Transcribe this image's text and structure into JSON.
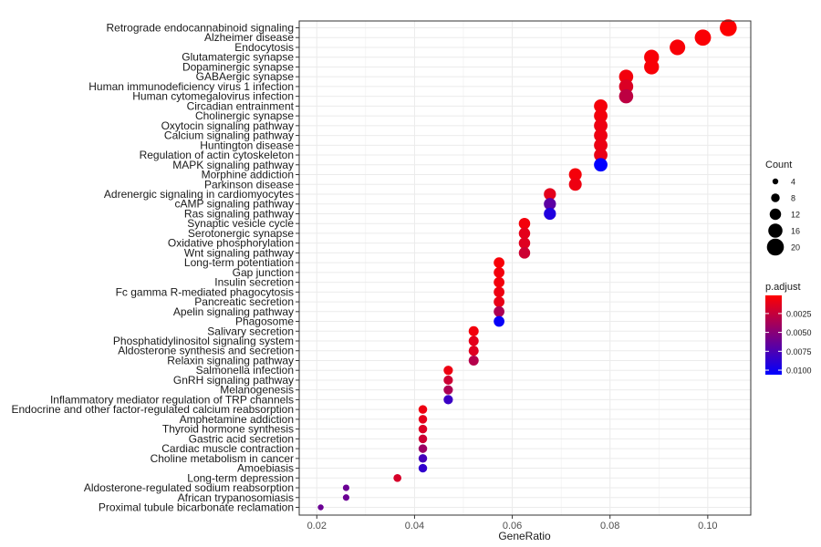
{
  "chart_data": {
    "type": "scatter",
    "xlabel": "GeneRatio",
    "xlim": [
      0.0164,
      0.1088
    ],
    "xticks": [
      0.02,
      0.04,
      0.06,
      0.08,
      0.1
    ],
    "xtick_labels": [
      "0.02",
      "0.04",
      "0.06",
      "0.08",
      "0.10"
    ],
    "size_legend": {
      "title": "Count",
      "values": [
        4,
        8,
        12,
        16,
        20
      ]
    },
    "color_legend": {
      "title": "p.adjust",
      "ticks": [
        0.0025,
        0.005,
        0.0075,
        0.01
      ],
      "tick_labels": [
        "0.0025",
        "0.0050",
        "0.0075",
        "0.0100"
      ],
      "range": [
        0.0001,
        0.0106
      ],
      "low_color": "#ff0000",
      "high_color": "#0000ff"
    },
    "points": [
      {
        "term": "Retrograde endocannabinoid signaling",
        "x": 0.1042,
        "count": 20,
        "p": 0.0002
      },
      {
        "term": "Alzheimer disease",
        "x": 0.099,
        "count": 19,
        "p": 0.0003
      },
      {
        "term": "Endocytosis",
        "x": 0.0938,
        "count": 18,
        "p": 0.0004
      },
      {
        "term": "Glutamatergic synapse",
        "x": 0.0885,
        "count": 17,
        "p": 0.0004
      },
      {
        "term": "Dopaminergic synapse",
        "x": 0.0885,
        "count": 17,
        "p": 0.0004
      },
      {
        "term": "GABAergic synapse",
        "x": 0.0833,
        "count": 16,
        "p": 0.0006
      },
      {
        "term": "Human immunodeficiency virus 1 infection",
        "x": 0.0833,
        "count": 16,
        "p": 0.0016
      },
      {
        "term": "Human cytomegalovirus infection",
        "x": 0.0833,
        "count": 16,
        "p": 0.0028
      },
      {
        "term": "Circadian entrainment",
        "x": 0.0781,
        "count": 15,
        "p": 0.0005
      },
      {
        "term": "Cholinergic synapse",
        "x": 0.0781,
        "count": 15,
        "p": 0.0006
      },
      {
        "term": "Oxytocin signaling pathway",
        "x": 0.0781,
        "count": 15,
        "p": 0.0008
      },
      {
        "term": "Calcium signaling pathway",
        "x": 0.0781,
        "count": 15,
        "p": 0.0008
      },
      {
        "term": "Huntington disease",
        "x": 0.0781,
        "count": 15,
        "p": 0.0009
      },
      {
        "term": "Regulation of actin cytoskeleton",
        "x": 0.0781,
        "count": 15,
        "p": 0.001
      },
      {
        "term": "MAPK signaling pathway",
        "x": 0.0781,
        "count": 15,
        "p": 0.0106
      },
      {
        "term": "Morphine addiction",
        "x": 0.0729,
        "count": 14,
        "p": 0.0005
      },
      {
        "term": "Parkinson disease",
        "x": 0.0729,
        "count": 14,
        "p": 0.0008
      },
      {
        "term": "Adrenergic signaling in cardiomyocytes",
        "x": 0.0677,
        "count": 13,
        "p": 0.0012
      },
      {
        "term": "cAMP signaling pathway",
        "x": 0.0677,
        "count": 13,
        "p": 0.0068
      },
      {
        "term": "Ras signaling pathway",
        "x": 0.0677,
        "count": 13,
        "p": 0.0093
      },
      {
        "term": "Synaptic vesicle cycle",
        "x": 0.0625,
        "count": 12,
        "p": 0.0006
      },
      {
        "term": "Serotonergic synapse",
        "x": 0.0625,
        "count": 12,
        "p": 0.0012
      },
      {
        "term": "Oxidative phosphorylation",
        "x": 0.0625,
        "count": 12,
        "p": 0.0014
      },
      {
        "term": "Wnt signaling pathway",
        "x": 0.0625,
        "count": 12,
        "p": 0.0022
      },
      {
        "term": "Long-term potentiation",
        "x": 0.0573,
        "count": 11,
        "p": 0.0004
      },
      {
        "term": "Gap junction",
        "x": 0.0573,
        "count": 11,
        "p": 0.0006
      },
      {
        "term": "Insulin secretion",
        "x": 0.0573,
        "count": 11,
        "p": 0.0006
      },
      {
        "term": "Fc gamma R-mediated phagocytosis",
        "x": 0.0573,
        "count": 11,
        "p": 0.0008
      },
      {
        "term": "Pancreatic secretion",
        "x": 0.0573,
        "count": 11,
        "p": 0.001
      },
      {
        "term": "Apelin signaling pathway",
        "x": 0.0573,
        "count": 11,
        "p": 0.0035
      },
      {
        "term": "Phagosome",
        "x": 0.0573,
        "count": 11,
        "p": 0.0103
      },
      {
        "term": "Salivary secretion",
        "x": 0.0521,
        "count": 10,
        "p": 0.0006
      },
      {
        "term": "Phosphatidylinositol signaling system",
        "x": 0.0521,
        "count": 10,
        "p": 0.0012
      },
      {
        "term": "Aldosterone synthesis and secretion",
        "x": 0.0521,
        "count": 10,
        "p": 0.0014
      },
      {
        "term": "Relaxin signaling pathway",
        "x": 0.0521,
        "count": 10,
        "p": 0.0032
      },
      {
        "term": "Salmonella infection",
        "x": 0.0469,
        "count": 9,
        "p": 0.0008
      },
      {
        "term": "GnRH signaling pathway",
        "x": 0.0469,
        "count": 9,
        "p": 0.0022
      },
      {
        "term": "Melanogenesis",
        "x": 0.0469,
        "count": 9,
        "p": 0.0035
      },
      {
        "term": "Inflammatory mediator regulation of TRP channels",
        "x": 0.0469,
        "count": 9,
        "p": 0.0082
      },
      {
        "term": "Endocrine and other factor-regulated calcium reabsorption",
        "x": 0.0417,
        "count": 8,
        "p": 0.0008
      },
      {
        "term": "Amphetamine addiction",
        "x": 0.0417,
        "count": 8,
        "p": 0.0012
      },
      {
        "term": "Thyroid hormone synthesis",
        "x": 0.0417,
        "count": 8,
        "p": 0.0016
      },
      {
        "term": "Gastric acid secretion",
        "x": 0.0417,
        "count": 8,
        "p": 0.0022
      },
      {
        "term": "Cardiac muscle contraction",
        "x": 0.0417,
        "count": 8,
        "p": 0.0042
      },
      {
        "term": "Choline metabolism in cancer",
        "x": 0.0417,
        "count": 8,
        "p": 0.0078
      },
      {
        "term": "Amoebiasis",
        "x": 0.0417,
        "count": 8,
        "p": 0.0086
      },
      {
        "term": "Long-term depression",
        "x": 0.0365,
        "count": 7,
        "p": 0.0018
      },
      {
        "term": "Aldosterone-regulated sodium reabsorption",
        "x": 0.026,
        "count": 5,
        "p": 0.0062
      },
      {
        "term": "African trypanosomiasis",
        "x": 0.026,
        "count": 5,
        "p": 0.0062
      },
      {
        "term": "Proximal tubule bicarbonate reclamation",
        "x": 0.0208,
        "count": 4,
        "p": 0.0062
      }
    ]
  }
}
